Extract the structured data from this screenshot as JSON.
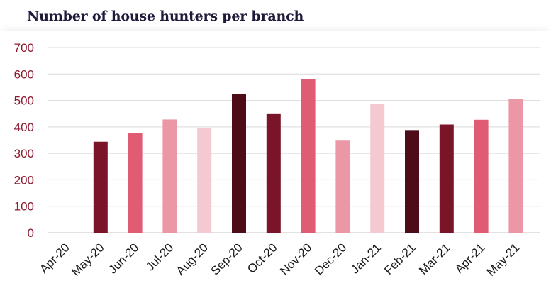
{
  "chart_data": {
    "type": "bar",
    "title": "Number of house hunters per branch",
    "categories": [
      "Apr-20",
      "May-20",
      "Jun-20",
      "Jul-20",
      "Aug-20",
      "Sep-20",
      "Oct-20",
      "Nov-20",
      "Dec-20",
      "Jan-21",
      "Feb-21",
      "Mar-21",
      "Apr-21",
      "May-21"
    ],
    "values": [
      0,
      344,
      378,
      428,
      396,
      524,
      451,
      580,
      348,
      487,
      388,
      409,
      427,
      506
    ],
    "colors": [
      "#7a1428",
      "#7a1428",
      "#e05c73",
      "#ec97a5",
      "#f5c9d2",
      "#4e0c18",
      "#7a1428",
      "#e05c73",
      "#ec97a5",
      "#f5c9d2",
      "#4e0c18",
      "#7a1428",
      "#e05c73",
      "#ec97a5"
    ],
    "ylim": [
      0,
      700
    ],
    "yticks": [
      0,
      100,
      200,
      300,
      400,
      500,
      600,
      700
    ],
    "grid": true,
    "axis_color": "#8b1a2f",
    "grid_color": "#d9d9d9"
  }
}
